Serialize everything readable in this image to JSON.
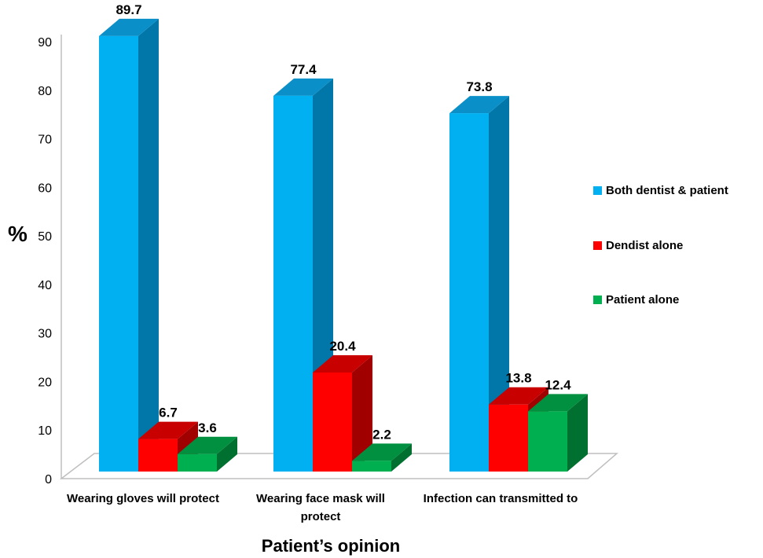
{
  "chart_data": {
    "type": "bar",
    "categories": [
      [
        "Wearing gloves will protect"
      ],
      [
        "Wearing face mask will",
        "protect"
      ],
      [
        "Infection can  transmitted to"
      ]
    ],
    "series": [
      {
        "name": "Both dentist  & patient",
        "values": [
          89.7,
          77.4,
          73.8
        ],
        "color": "#00b0f0",
        "side": "#0077a8",
        "top": "#0a8fc8"
      },
      {
        "name": "Dendist alone",
        "values": [
          6.7,
          20.4,
          13.8
        ],
        "color": "#ff0000",
        "side": "#a00000",
        "top": "#c80000"
      },
      {
        "name": "Patient alone",
        "values": [
          3.6,
          2.2,
          12.4
        ],
        "color": "#00b050",
        "side": "#007030",
        "top": "#009040"
      }
    ],
    "data_labels": [
      [
        "89.7",
        "6.7",
        "3.6"
      ],
      [
        "77.4",
        "20.4",
        "2.2"
      ],
      [
        "73.8",
        "13.8",
        "12.4"
      ]
    ],
    "yticks": [
      "0",
      "10",
      "20",
      "30",
      "40",
      "50",
      "60",
      "70",
      "80",
      "90"
    ],
    "ylim": [
      0,
      90
    ],
    "xlabel": "Patient’s opinion",
    "ylabel": "%",
    "legend_position": "right",
    "grid": false
  }
}
